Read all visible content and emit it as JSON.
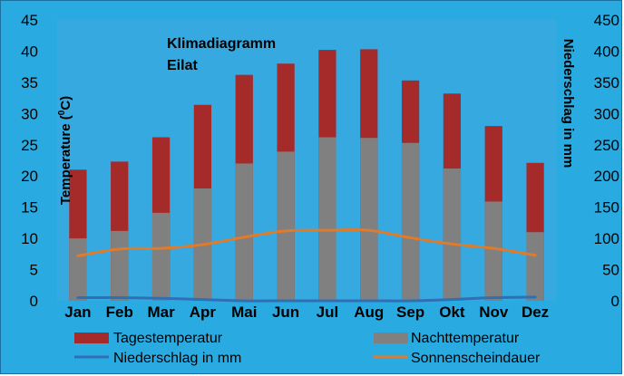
{
  "chart_data": {
    "type": "bar",
    "title": "Klimadiagramm",
    "subtitle": "Eilat",
    "categories": [
      "Jan",
      "Feb",
      "Mar",
      "Apr",
      "Mai",
      "Jun",
      "Jul",
      "Aug",
      "Sep",
      "Okt",
      "Nov",
      "Dez"
    ],
    "series": [
      {
        "name": "Tagestemperatur",
        "type": "bar",
        "axis": "left",
        "color": "#A52A2A",
        "values": [
          21,
          22.3,
          26.2,
          31.4,
          36.2,
          38,
          40.2,
          40.3,
          35.3,
          33.2,
          28,
          22.1
        ]
      },
      {
        "name": "Nachttemperatur",
        "type": "bar",
        "axis": "left",
        "color": "#808080",
        "values": [
          10,
          11.2,
          14.1,
          18,
          22,
          23.9,
          26.2,
          26.1,
          25.3,
          21.2,
          15.9,
          11
        ]
      },
      {
        "name": "Niederschlag in mm",
        "type": "line",
        "axis": "right",
        "color": "#2E6FB5",
        "values": [
          5,
          5,
          4,
          2,
          0,
          0,
          0,
          0,
          0,
          2,
          5,
          6
        ]
      },
      {
        "name": "Sonnenscheindauer",
        "type": "line",
        "axis": "right",
        "color": "#E07B2C",
        "values": [
          72,
          83,
          84,
          90,
          102,
          112,
          113,
          113,
          101,
          91,
          84,
          73
        ]
      }
    ],
    "ylabel": "Temperature (0C)",
    "ylabel_parts": {
      "before": "Temperature (",
      "sup": "0",
      "after": "C)"
    },
    "y2label": "Niederschlag in mm",
    "ylim": [
      0,
      45
    ],
    "y2lim": [
      0,
      450
    ],
    "yticks": [
      "0",
      "5",
      "10",
      "15",
      "20",
      "25",
      "30",
      "35",
      "40",
      "45"
    ],
    "y2ticks": [
      "0",
      "50",
      "100",
      "150",
      "200",
      "250",
      "300",
      "350",
      "400",
      "450"
    ],
    "legend_position": "bottom",
    "grid": false
  }
}
